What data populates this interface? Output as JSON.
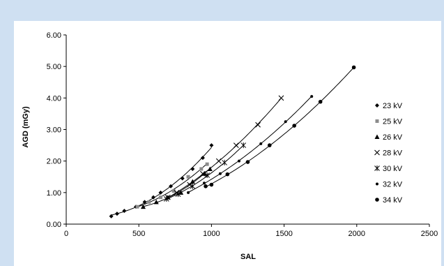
{
  "colors": {
    "border": "#cfe0f2",
    "axis": "#000000",
    "series": "#000000",
    "series_light": "#8c8c8c"
  },
  "chart_data": {
    "type": "scatter",
    "title": "",
    "xlabel": "SAL",
    "ylabel": "AGD (mGy)",
    "xlim": [
      0,
      2500
    ],
    "ylim": [
      0,
      6
    ],
    "x_ticks": [
      "0",
      "500",
      "1000",
      "1500",
      "2000",
      "2500"
    ],
    "y_ticks": [
      "0.00",
      "1.00",
      "2.00",
      "3.00",
      "4.00",
      "5.00",
      "6.00"
    ],
    "grid": false,
    "legend_position": "right",
    "series": [
      {
        "name": "23 kV",
        "marker": "diamond",
        "x": [
          310,
          350,
          400,
          480,
          540,
          600,
          650,
          720,
          800,
          870,
          940,
          1000
        ],
        "y": [
          0.25,
          0.33,
          0.42,
          0.55,
          0.7,
          0.85,
          1.0,
          1.2,
          1.45,
          1.75,
          2.1,
          2.5
        ]
      },
      {
        "name": "25 kV",
        "marker": "square",
        "x": [
          490,
          570,
          650,
          740,
          840,
          930,
          970
        ],
        "y": [
          0.55,
          0.7,
          0.85,
          1.05,
          1.5,
          1.75,
          1.9
        ]
      },
      {
        "name": "26 kV",
        "marker": "triangle",
        "x": [
          530,
          620,
          700,
          790,
          870,
          950,
          990
        ],
        "y": [
          0.55,
          0.7,
          0.85,
          1.0,
          1.35,
          1.6,
          1.75
        ]
      },
      {
        "name": "28 kV",
        "marker": "x",
        "x": [
          700,
          760,
          850,
          940,
          1050,
          1170,
          1320,
          1480
        ],
        "y": [
          0.85,
          1.0,
          1.25,
          1.6,
          2.0,
          2.5,
          3.15,
          4.0
        ]
      },
      {
        "name": "30 kV",
        "marker": "star",
        "x": [
          690,
          770,
          870,
          970,
          1090,
          1220
        ],
        "y": [
          0.8,
          0.95,
          1.2,
          1.55,
          1.95,
          2.5
        ]
      },
      {
        "name": "32 kV",
        "marker": "dot",
        "x": [
          840,
          950,
          1060,
          1190,
          1340,
          1510,
          1690
        ],
        "y": [
          1.0,
          1.3,
          1.6,
          2.0,
          2.55,
          3.25,
          4.05
        ]
      },
      {
        "name": "34 kV",
        "marker": "circle",
        "x": [
          960,
          1000,
          1110,
          1250,
          1400,
          1570,
          1750,
          1980
        ],
        "y": [
          1.2,
          1.25,
          1.58,
          1.97,
          2.5,
          3.12,
          3.88,
          4.97
        ]
      }
    ]
  }
}
